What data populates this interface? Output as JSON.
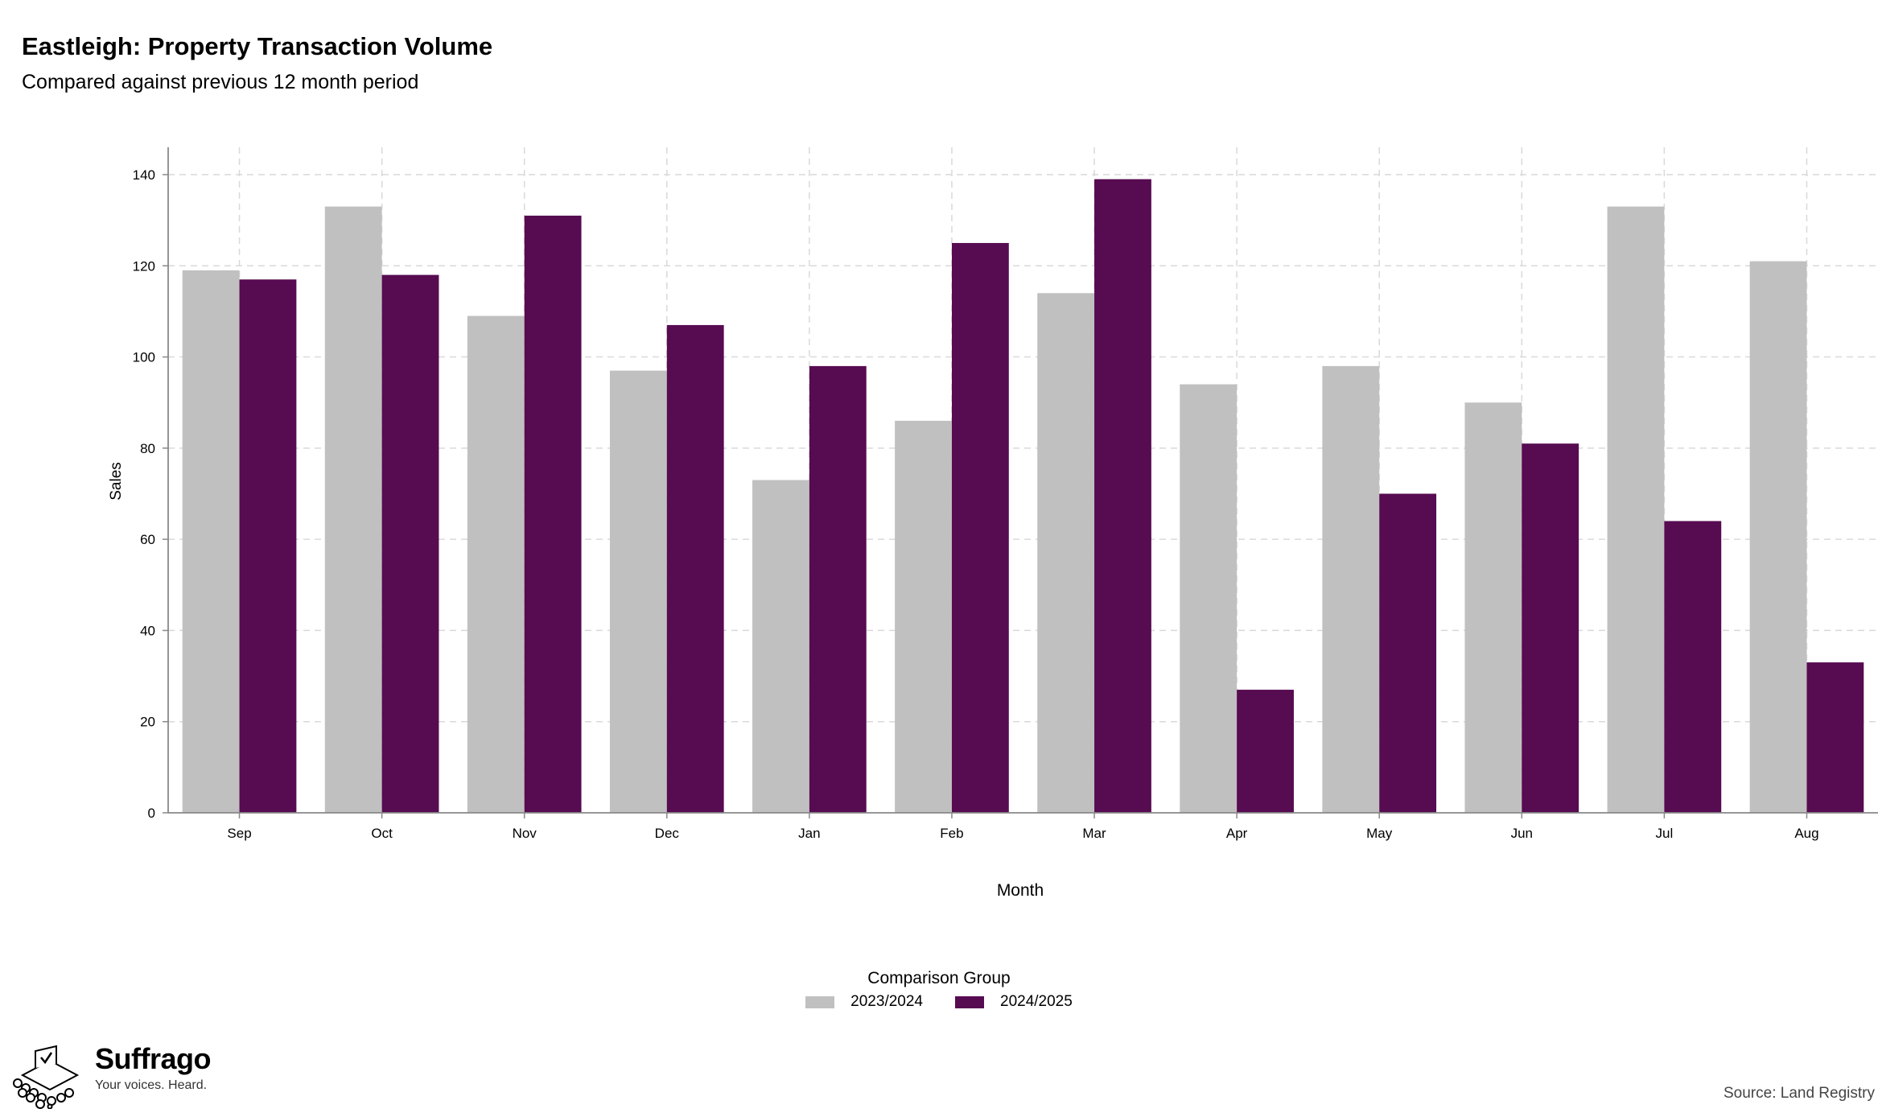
{
  "chart_data": {
    "type": "bar",
    "title": "Eastleigh: Property Transaction Volume",
    "subtitle": "Compared against previous 12 month period",
    "xlabel": "Month",
    "ylabel": "Sales",
    "categories": [
      "Sep",
      "Oct",
      "Nov",
      "Dec",
      "Jan",
      "Feb",
      "Mar",
      "Apr",
      "May",
      "Jun",
      "Jul",
      "Aug"
    ],
    "series": [
      {
        "name": "2023/2024",
        "color": "#c0c0c0",
        "values": [
          119,
          133,
          109,
          97,
          73,
          86,
          114,
          94,
          98,
          90,
          133,
          121
        ]
      },
      {
        "name": "2024/2025",
        "color": "#570b51",
        "values": [
          117,
          118,
          131,
          107,
          98,
          125,
          139,
          27,
          70,
          81,
          64,
          33
        ]
      }
    ],
    "ylim": [
      0,
      146
    ],
    "yticks": [
      0,
      20,
      40,
      60,
      80,
      100,
      120,
      140
    ],
    "grid": true,
    "legend_title": "Comparison Group",
    "legend_position": "bottom"
  },
  "branding": {
    "name": "Suffrago",
    "tagline": "Your voices. Heard.",
    "logo_icon": "ballot-box-icon"
  },
  "source": "Source: Land Registry"
}
